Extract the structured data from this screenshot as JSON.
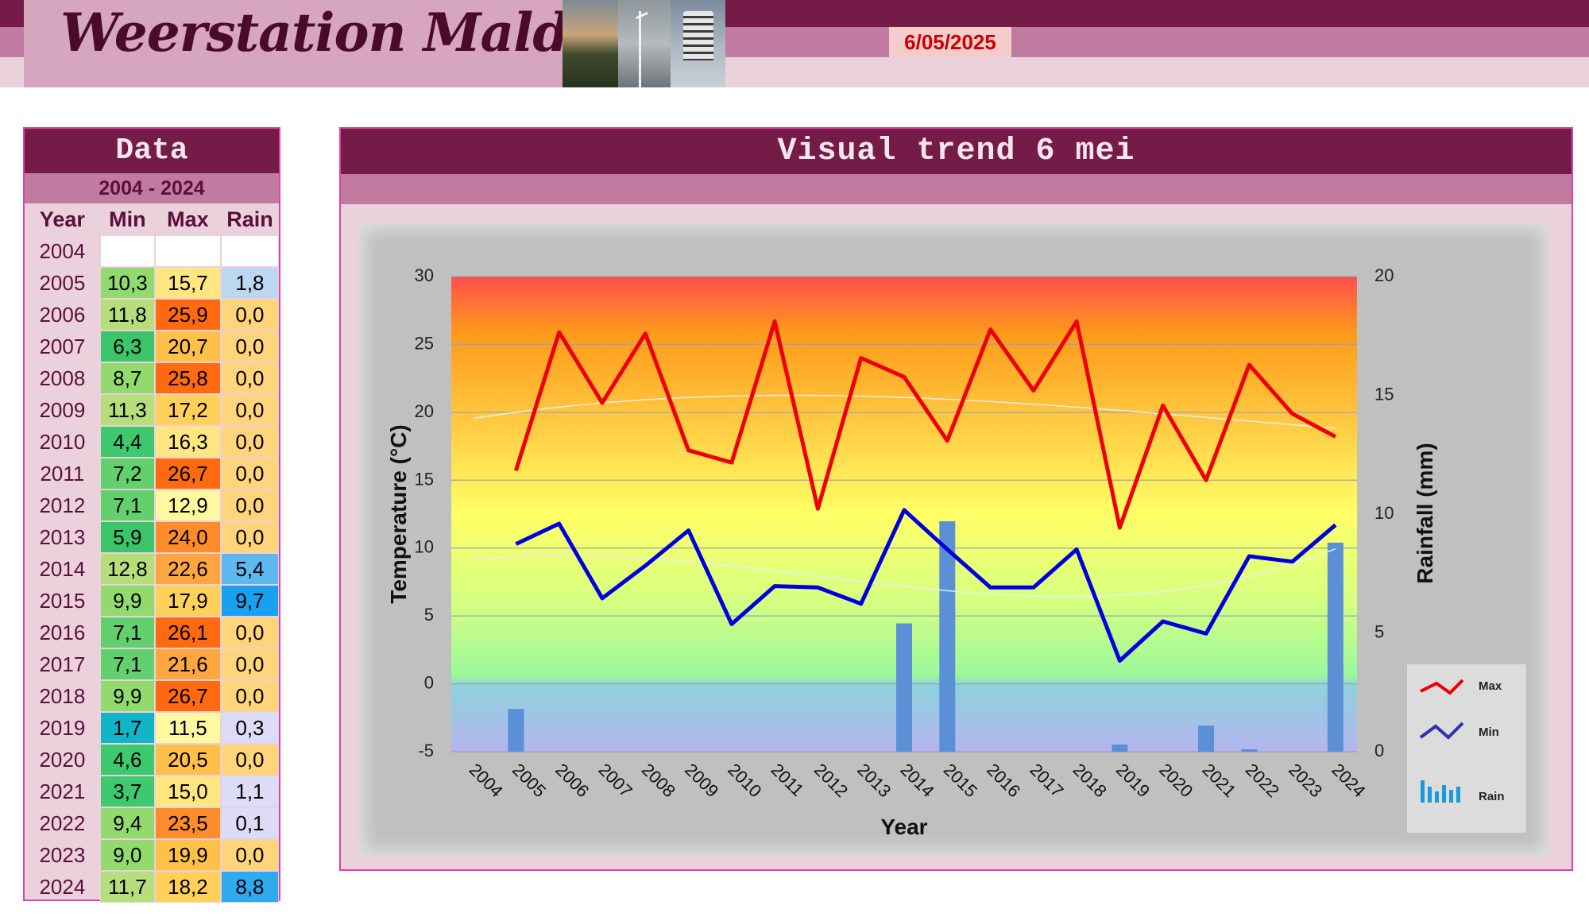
{
  "header": {
    "title": "Weerstation Malderen",
    "date": "6/05/2025"
  },
  "table": {
    "title": "Data",
    "range": "2004 - 2024",
    "columns": [
      "Year",
      "Min",
      "Max",
      "Rain"
    ],
    "rows": [
      {
        "year": "2004",
        "min": "",
        "max": "",
        "rain": ""
      },
      {
        "year": "2005",
        "min": "10,3",
        "max": "15,7",
        "rain": "1,8"
      },
      {
        "year": "2006",
        "min": "11,8",
        "max": "25,9",
        "rain": "0,0"
      },
      {
        "year": "2007",
        "min": "6,3",
        "max": "20,7",
        "rain": "0,0"
      },
      {
        "year": "2008",
        "min": "8,7",
        "max": "25,8",
        "rain": "0,0"
      },
      {
        "year": "2009",
        "min": "11,3",
        "max": "17,2",
        "rain": "0,0"
      },
      {
        "year": "2010",
        "min": "4,4",
        "max": "16,3",
        "rain": "0,0"
      },
      {
        "year": "2011",
        "min": "7,2",
        "max": "26,7",
        "rain": "0,0"
      },
      {
        "year": "2012",
        "min": "7,1",
        "max": "12,9",
        "rain": "0,0"
      },
      {
        "year": "2013",
        "min": "5,9",
        "max": "24,0",
        "rain": "0,0"
      },
      {
        "year": "2014",
        "min": "12,8",
        "max": "22,6",
        "rain": "5,4"
      },
      {
        "year": "2015",
        "min": "9,9",
        "max": "17,9",
        "rain": "9,7"
      },
      {
        "year": "2016",
        "min": "7,1",
        "max": "26,1",
        "rain": "0,0"
      },
      {
        "year": "2017",
        "min": "7,1",
        "max": "21,6",
        "rain": "0,0"
      },
      {
        "year": "2018",
        "min": "9,9",
        "max": "26,7",
        "rain": "0,0"
      },
      {
        "year": "2019",
        "min": "1,7",
        "max": "11,5",
        "rain": "0,3"
      },
      {
        "year": "2020",
        "min": "4,6",
        "max": "20,5",
        "rain": "0,0"
      },
      {
        "year": "2021",
        "min": "3,7",
        "max": "15,0",
        "rain": "1,1"
      },
      {
        "year": "2022",
        "min": "9,4",
        "max": "23,5",
        "rain": "0,1"
      },
      {
        "year": "2023",
        "min": "9,0",
        "max": "19,9",
        "rain": "0,0"
      },
      {
        "year": "2024",
        "min": "11,7",
        "max": "18,2",
        "rain": "8,8"
      }
    ]
  },
  "chart": {
    "title": "Visual trend 6 mei"
  },
  "chart_data": {
    "type": "line",
    "xlabel": "Year",
    "ylabel": "Temperature (°C)",
    "y2label": "Rainfall (mm)",
    "ylim": [
      -5,
      30
    ],
    "y2lim": [
      0,
      20
    ],
    "yticks": [
      "30",
      "25",
      "20",
      "15",
      "10",
      "5",
      "0",
      "-5"
    ],
    "y2ticks": [
      "20",
      "15",
      "10",
      "5",
      "0"
    ],
    "categories": [
      "2004",
      "2005",
      "2006",
      "2007",
      "2008",
      "2009",
      "2010",
      "2011",
      "2012",
      "2013",
      "2014",
      "2015",
      "2016",
      "2017",
      "2018",
      "2019",
      "2020",
      "2021",
      "2022",
      "2023",
      "2024"
    ],
    "series": [
      {
        "name": "Max",
        "kind": "line",
        "axis": "left",
        "color": "#ee0000",
        "values": [
          null,
          15.7,
          25.9,
          20.7,
          25.8,
          17.2,
          16.3,
          26.7,
          12.9,
          24.0,
          22.6,
          17.9,
          26.1,
          21.6,
          26.7,
          11.5,
          20.5,
          15.0,
          23.5,
          19.9,
          18.2
        ]
      },
      {
        "name": "Min",
        "kind": "line",
        "axis": "left",
        "color": "#0000dd",
        "values": [
          null,
          10.3,
          11.8,
          6.3,
          8.7,
          11.3,
          4.4,
          7.2,
          7.1,
          5.9,
          12.8,
          9.9,
          7.1,
          7.1,
          9.9,
          1.7,
          4.6,
          3.7,
          9.4,
          9.0,
          11.7
        ]
      },
      {
        "name": "Rain",
        "kind": "bar",
        "axis": "right",
        "color": "#5b8fd6",
        "values": [
          null,
          1.8,
          0.0,
          0.0,
          0.0,
          0.0,
          0.0,
          0.0,
          0.0,
          0.0,
          5.4,
          9.7,
          0.0,
          0.0,
          0.0,
          0.3,
          0.0,
          1.1,
          0.1,
          0.0,
          8.8
        ]
      }
    ],
    "legend": {
      "position": "right",
      "entries": [
        "Max",
        "Min",
        "Rain"
      ]
    }
  },
  "colors": {
    "dark_purple": "#741b47",
    "mid_purple": "#c27ba0",
    "light_purple": "#ead1dc",
    "date_red": "#cc0000",
    "max_line": "#ee0000",
    "min_line": "#0000dd",
    "rain_bar": "#5b8fd6"
  }
}
